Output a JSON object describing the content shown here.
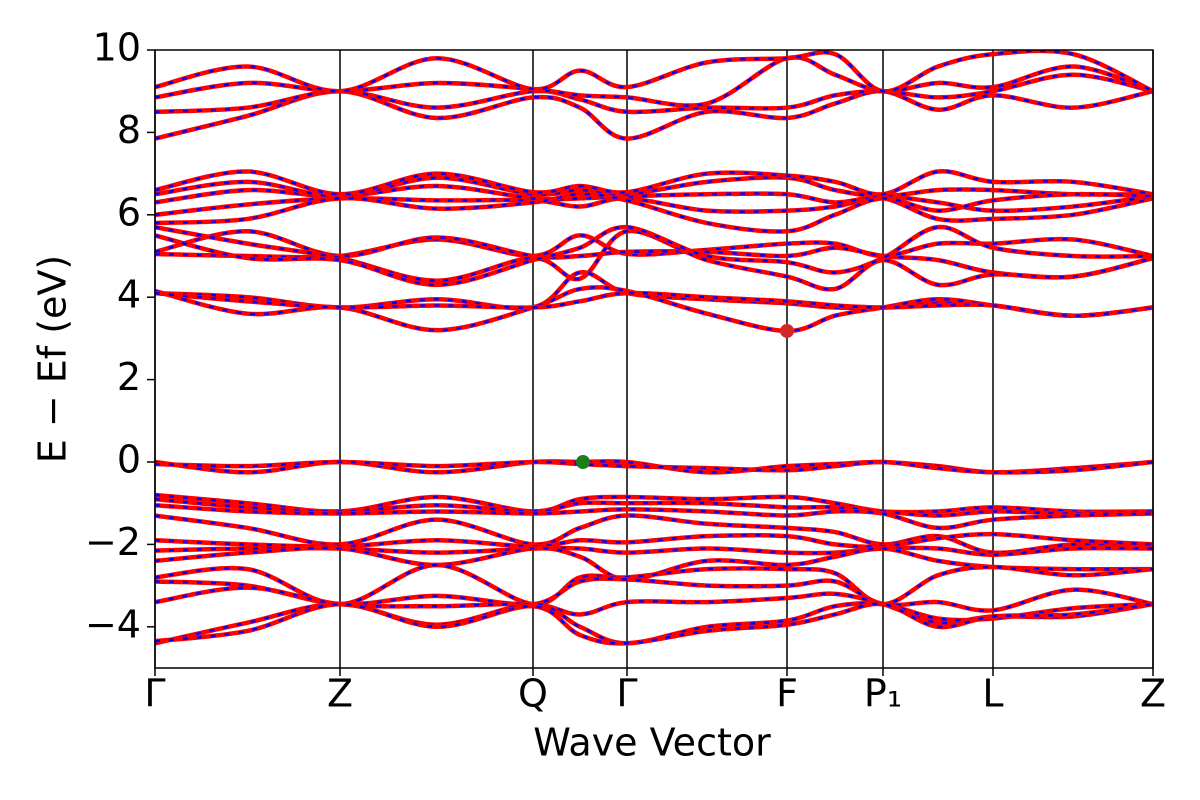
{
  "chart_data": {
    "type": "line",
    "xlabel": "Wave Vector",
    "ylabel": "E − Ef (eV)",
    "xlim": [
      0,
      9.98
    ],
    "xticks": [
      {
        "value": 0,
        "label": "Γ"
      },
      {
        "value": 1.85,
        "label": "Z"
      },
      {
        "value": 3.78,
        "label": "Q"
      },
      {
        "value": 4.72,
        "label": "Γ"
      },
      {
        "value": 6.32,
        "label": "F"
      },
      {
        "value": 7.28,
        "label": "P₁"
      },
      {
        "value": 8.38,
        "label": "L"
      },
      {
        "value": 9.98,
        "label": "Z"
      }
    ],
    "ylim": [
      -5,
      10
    ],
    "yticks": [
      {
        "value": -4,
        "label": "−4"
      },
      {
        "value": -2,
        "label": "−2"
      },
      0,
      2,
      4,
      6,
      8,
      10
    ],
    "color": "#ff0000",
    "overlay_color": "#0000ff",
    "x": [
      0,
      0.925,
      1.85,
      2.815,
      3.78,
      4.25,
      4.72,
      5.52,
      6.32,
      6.8,
      7.28,
      7.83,
      8.38,
      9.18,
      9.98
    ],
    "series": [
      {
        "values": [
          7.85,
          8.4,
          9.0,
          8.35,
          8.85,
          8.6,
          7.85,
          8.5,
          8.35,
          8.7,
          9.0,
          8.55,
          8.9,
          8.6,
          9.0
        ]
      },
      {
        "values": [
          8.5,
          8.6,
          9.0,
          8.6,
          9.0,
          8.8,
          8.5,
          8.6,
          8.6,
          8.9,
          9.0,
          8.85,
          9.0,
          9.4,
          9.0
        ]
      },
      {
        "values": [
          8.85,
          9.2,
          9.0,
          9.2,
          9.05,
          8.9,
          8.85,
          8.7,
          9.8,
          9.4,
          9.0,
          9.2,
          9.1,
          9.6,
          9.0
        ]
      },
      {
        "values": [
          9.1,
          9.6,
          9.0,
          9.8,
          9.05,
          9.5,
          9.1,
          9.7,
          9.8,
          9.9,
          9.0,
          9.6,
          9.9,
          9.9,
          9.0
        ]
      },
      {
        "values": [
          6.0,
          6.25,
          6.4,
          6.35,
          6.35,
          6.2,
          6.4,
          6.1,
          6.1,
          6.2,
          6.4,
          5.9,
          5.9,
          6.0,
          6.4
        ]
      },
      {
        "values": [
          6.3,
          6.6,
          6.45,
          6.7,
          6.4,
          6.4,
          6.45,
          6.5,
          6.5,
          6.3,
          6.45,
          6.3,
          6.1,
          6.2,
          6.45
        ]
      },
      {
        "values": [
          6.5,
          6.8,
          6.45,
          6.9,
          6.5,
          6.6,
          6.5,
          6.8,
          6.9,
          6.6,
          6.45,
          6.6,
          6.6,
          6.5,
          6.5
        ]
      },
      {
        "values": [
          6.6,
          7.05,
          6.5,
          7.0,
          6.55,
          6.7,
          6.55,
          7.0,
          6.95,
          6.8,
          6.5,
          7.05,
          6.8,
          6.8,
          6.5
        ]
      },
      {
        "values": [
          5.8,
          5.9,
          6.4,
          6.15,
          6.3,
          6.5,
          6.35,
          5.8,
          5.6,
          6.0,
          6.4,
          6.1,
          6.35,
          6.5,
          6.45
        ]
      },
      {
        "values": [
          5.05,
          5.0,
          5.0,
          5.4,
          5.0,
          5.5,
          5.05,
          5.15,
          5.3,
          5.3,
          5.0,
          5.3,
          5.3,
          5.4,
          5.0
        ]
      },
      {
        "values": [
          5.1,
          5.6,
          5.0,
          5.45,
          5.0,
          5.0,
          5.1,
          5.1,
          5.0,
          5.2,
          5.0,
          4.9,
          4.6,
          4.5,
          4.95
        ]
      },
      {
        "values": [
          5.7,
          5.3,
          4.95,
          4.4,
          4.95,
          4.45,
          5.6,
          4.9,
          4.5,
          4.2,
          4.9,
          4.3,
          4.55,
          4.5,
          4.95
        ]
      },
      {
        "values": [
          5.5,
          4.95,
          4.9,
          4.3,
          4.9,
          5.2,
          5.7,
          5.0,
          4.85,
          4.6,
          4.95,
          5.7,
          5.2,
          5.0,
          5.0
        ]
      },
      {
        "values": [
          4.1,
          4.0,
          3.75,
          3.95,
          3.75,
          4.6,
          4.1,
          3.95,
          3.85,
          3.75,
          3.75,
          3.85,
          3.8,
          3.55,
          3.75
        ]
      },
      {
        "values": [
          4.15,
          3.6,
          3.75,
          3.2,
          3.75,
          4.2,
          4.15,
          3.6,
          3.18,
          3.55,
          3.75,
          3.95,
          3.8,
          3.55,
          3.75
        ]
      },
      {
        "values": [
          4.1,
          3.9,
          3.75,
          3.8,
          3.75,
          3.9,
          4.1,
          4.0,
          3.9,
          3.8,
          3.75,
          3.8,
          3.8,
          3.55,
          3.75
        ]
      },
      {
        "values": [
          0.0,
          -0.25,
          0.0,
          -0.25,
          0.0,
          0.0,
          0.0,
          -0.25,
          -0.1,
          -0.05,
          0.0,
          -0.1,
          -0.25,
          -0.15,
          0.0
        ]
      },
      {
        "values": [
          -0.05,
          -0.1,
          0.0,
          -0.1,
          0.0,
          -0.05,
          -0.1,
          -0.15,
          -0.2,
          -0.1,
          0.0,
          -0.15,
          -0.25,
          -0.2,
          0.0
        ]
      },
      {
        "values": [
          -0.8,
          -1.0,
          -1.2,
          -0.85,
          -1.2,
          -0.9,
          -0.85,
          -0.9,
          -0.85,
          -1.0,
          -1.2,
          -1.2,
          -1.1,
          -1.2,
          -1.2
        ]
      },
      {
        "values": [
          -0.9,
          -1.1,
          -1.2,
          -1.05,
          -1.2,
          -1.0,
          -1.0,
          -1.0,
          -1.1,
          -1.1,
          -1.2,
          -1.3,
          -1.2,
          -1.25,
          -1.2
        ]
      },
      {
        "values": [
          -1.05,
          -1.2,
          -1.25,
          -1.2,
          -1.25,
          -1.2,
          -1.15,
          -1.2,
          -1.3,
          -1.2,
          -1.25,
          -1.6,
          -1.4,
          -1.3,
          -1.25
        ]
      },
      {
        "values": [
          -1.3,
          -1.6,
          -2.0,
          -1.4,
          -2.0,
          -1.6,
          -1.3,
          -1.5,
          -1.6,
          -1.7,
          -2.0,
          -1.8,
          -2.2,
          -2.0,
          -2.0
        ]
      },
      {
        "values": [
          -1.9,
          -2.0,
          -2.05,
          -1.9,
          -2.05,
          -1.9,
          -1.95,
          -1.8,
          -1.8,
          -2.0,
          -2.05,
          -1.85,
          -1.75,
          -1.9,
          -2.0
        ]
      },
      {
        "values": [
          -2.15,
          -2.1,
          -2.1,
          -2.2,
          -2.1,
          -2.1,
          -2.2,
          -2.1,
          -2.2,
          -2.2,
          -2.1,
          -2.1,
          -2.25,
          -2.1,
          -2.1
        ]
      },
      {
        "values": [
          -2.4,
          -2.2,
          -2.1,
          -2.5,
          -2.1,
          -2.3,
          -2.85,
          -2.4,
          -2.5,
          -2.3,
          -2.1,
          -2.4,
          -2.55,
          -2.6,
          -2.6
        ]
      },
      {
        "values": [
          -2.8,
          -2.6,
          -3.45,
          -2.5,
          -3.45,
          -2.8,
          -2.8,
          -2.6,
          -2.6,
          -2.7,
          -3.45,
          -2.75,
          -2.55,
          -2.75,
          -2.6
        ]
      },
      {
        "values": [
          -2.9,
          -3.0,
          -3.45,
          -3.25,
          -3.45,
          -2.9,
          -2.85,
          -3.0,
          -3.0,
          -2.9,
          -3.45,
          -3.4,
          -3.6,
          -3.1,
          -3.45
        ]
      },
      {
        "values": [
          -3.4,
          -3.05,
          -3.45,
          -3.5,
          -3.45,
          -3.7,
          -3.4,
          -3.4,
          -3.3,
          -3.2,
          -3.45,
          -3.9,
          -3.75,
          -3.75,
          -3.45
        ]
      },
      {
        "values": [
          -4.4,
          -3.9,
          -3.45,
          -3.95,
          -3.45,
          -4.0,
          -4.4,
          -4.0,
          -3.85,
          -3.5,
          -3.45,
          -3.8,
          -3.8,
          -3.55,
          -3.45
        ]
      },
      {
        "values": [
          -4.35,
          -4.1,
          -3.45,
          -4.0,
          -3.5,
          -4.2,
          -4.4,
          -4.1,
          -3.95,
          -3.7,
          -3.45,
          -4.0,
          -3.75,
          -3.7,
          -3.45
        ]
      }
    ],
    "points": [
      {
        "x": 6.32,
        "y": 3.18,
        "color": "#d62728"
      },
      {
        "x": 4.28,
        "y": 0,
        "color": "#1a7f1a"
      }
    ]
  }
}
